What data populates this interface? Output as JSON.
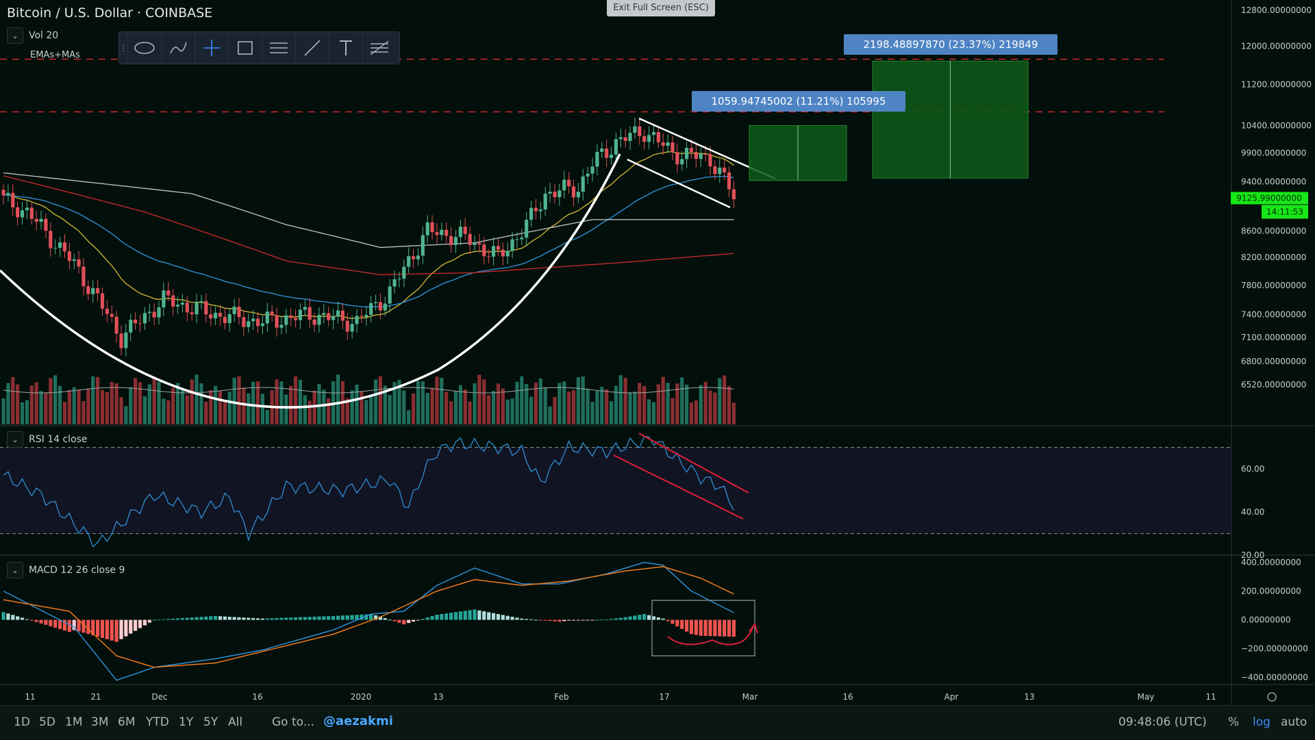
{
  "header": {
    "title": "Bitcoin / U.S. Dollar · COINBASE",
    "exit_fullscreen": "Exit Full Screen (ESC)"
  },
  "legends": {
    "vol": "Vol 20",
    "emas": "EMAs+MAs",
    "rsi": "RSI 14 close",
    "macd": "MACD 12 26 close 9"
  },
  "toolbar": {
    "tools": [
      "lasso-icon",
      "brush-icon",
      "crosshair-icon",
      "rectangle-icon",
      "hlines-icon",
      "trendline-icon",
      "text-icon",
      "fib-icon"
    ]
  },
  "bottom_bar": {
    "timeframes": [
      "1D",
      "5D",
      "1M",
      "3M",
      "6M",
      "YTD",
      "1Y",
      "5Y",
      "All"
    ],
    "goto": "Go to...",
    "author": "@aezakmi",
    "clock": "09:48:06 (UTC)",
    "percent": "%",
    "log": "log",
    "auto": "auto"
  },
  "colors": {
    "background": "#030f0a",
    "up": "#4fb38f",
    "down": "#e0505a",
    "ema20": "#c8b232",
    "ema50": "#2f8fd6",
    "ma100": "#b8bcbe",
    "ma200": "#c02a2a",
    "projection": "#0f5a1a",
    "label_box": "#4e84c4",
    "price_tag": "#17e617"
  },
  "chart_data": [
    {
      "type": "candlestick",
      "title": "Bitcoin / U.S. Dollar · COINBASE",
      "scale": "log",
      "ylim": [
        6300,
        12800
      ],
      "y_ticks": [
        12800,
        12000,
        11200,
        10400,
        9900,
        9400,
        8600,
        8200,
        7800,
        7400,
        7100,
        6800,
        6520
      ],
      "y_tick_labels": [
        "12800.00000000",
        "12000.00000000",
        "11200.00000000",
        "10400.00000000",
        "9900.00000000",
        "9400.00000000",
        "8600.00000000",
        "8200.00000000",
        "7800.00000000",
        "7400.00000000",
        "7100.00000000",
        "6800.00000000",
        "6520.00000000"
      ],
      "x_tick_labels": [
        "11",
        "21",
        "Dec",
        "16",
        "2020",
        "13",
        "Feb",
        "17",
        "Mar",
        "16",
        "Apr",
        "13",
        "May",
        "11"
      ],
      "last_price": "9125.99000000",
      "countdown": "14:11:53",
      "resistance_lines": [
        10660,
        11720
      ],
      "close_anchors": [
        [
          0,
          9100
        ],
        [
          5,
          8900
        ],
        [
          15,
          8100
        ],
        [
          25,
          7100
        ],
        [
          34,
          7600
        ],
        [
          45,
          7400
        ],
        [
          55,
          7300
        ],
        [
          65,
          7400
        ],
        [
          75,
          7300
        ],
        [
          82,
          7700
        ],
        [
          90,
          8600
        ],
        [
          98,
          8500
        ],
        [
          105,
          8200
        ],
        [
          110,
          8600
        ],
        [
          112,
          8800
        ],
        [
          115,
          9200
        ],
        [
          122,
          9300
        ],
        [
          125,
          9700
        ],
        [
          130,
          10100
        ],
        [
          136,
          10300
        ],
        [
          142,
          9900
        ],
        [
          150,
          9800
        ],
        [
          154,
          9300
        ],
        [
          155,
          9126
        ]
      ],
      "projections": [
        {
          "label": "1059.94745002 (11.21%) 105995",
          "top": 10400,
          "bottom": 9420
        },
        {
          "label": "2198.48897870 (23.37%) 219849",
          "top": 11680,
          "bottom": 9460
        }
      ]
    },
    {
      "type": "line",
      "title": "RSI 14 close",
      "ylim": [
        20,
        80
      ],
      "y_ticks": [
        60,
        40,
        20
      ],
      "y_tick_labels": [
        "60.00",
        "40.00",
        "20.00"
      ],
      "bands": [
        70,
        30
      ],
      "anchors": [
        [
          0,
          57
        ],
        [
          8,
          48
        ],
        [
          20,
          25
        ],
        [
          32,
          48
        ],
        [
          42,
          40
        ],
        [
          48,
          47
        ],
        [
          52,
          30
        ],
        [
          60,
          52
        ],
        [
          72,
          50
        ],
        [
          82,
          55
        ],
        [
          86,
          42
        ],
        [
          89,
          58
        ],
        [
          92,
          68
        ],
        [
          96,
          72
        ],
        [
          105,
          70
        ],
        [
          110,
          68
        ],
        [
          114,
          54
        ],
        [
          120,
          70
        ],
        [
          128,
          68
        ],
        [
          134,
          72
        ],
        [
          138,
          74
        ],
        [
          142,
          66
        ],
        [
          148,
          56
        ],
        [
          152,
          52
        ],
        [
          155,
          43
        ]
      ]
    },
    {
      "type": "macd",
      "title": "MACD 12 26 close 9",
      "ylim": [
        -450,
        450
      ],
      "y_ticks": [
        400,
        200,
        0,
        -200,
        -400
      ],
      "y_tick_labels": [
        "400.00000000",
        "200.00000000",
        "0.00000000",
        "−200.00000000",
        "−400.00000000"
      ],
      "macd_anchors": [
        [
          0,
          200
        ],
        [
          15,
          -50
        ],
        [
          24,
          -420
        ],
        [
          32,
          -330
        ],
        [
          45,
          -270
        ],
        [
          55,
          -210
        ],
        [
          70,
          -70
        ],
        [
          78,
          40
        ],
        [
          85,
          60
        ],
        [
          92,
          240
        ],
        [
          100,
          360
        ],
        [
          110,
          250
        ],
        [
          118,
          250
        ],
        [
          128,
          320
        ],
        [
          136,
          400
        ],
        [
          140,
          380
        ],
        [
          146,
          200
        ],
        [
          155,
          50
        ]
      ],
      "signal_anchors": [
        [
          0,
          140
        ],
        [
          14,
          60
        ],
        [
          24,
          -250
        ],
        [
          32,
          -330
        ],
        [
          45,
          -300
        ],
        [
          55,
          -220
        ],
        [
          70,
          -100
        ],
        [
          80,
          20
        ],
        [
          92,
          200
        ],
        [
          100,
          280
        ],
        [
          110,
          240
        ],
        [
          120,
          270
        ],
        [
          132,
          340
        ],
        [
          140,
          370
        ],
        [
          148,
          290
        ],
        [
          155,
          180
        ]
      ]
    }
  ]
}
